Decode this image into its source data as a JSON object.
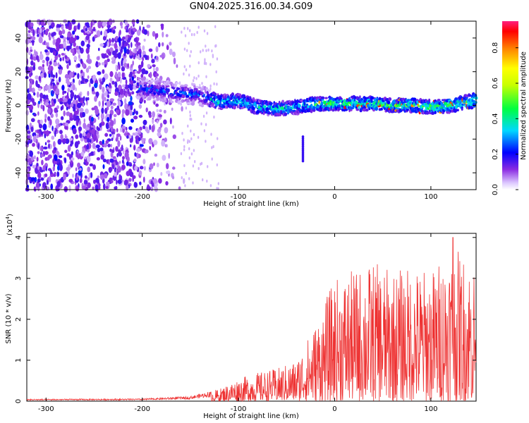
{
  "figure_title": "GN04.2025.316.00.34.G09",
  "chart_data": [
    {
      "type": "heatmap",
      "title": "GN04.2025.316.00.34.G09",
      "xlabel": "Height of straight line (km)",
      "ylabel": "Frequency (Hz)",
      "xlim": [
        -320,
        147
      ],
      "ylim": [
        -50,
        50
      ],
      "xticks": [
        "-300",
        "-200",
        "-100",
        "0",
        "100"
      ],
      "yticks": [
        "40",
        "20",
        "0",
        "-20",
        "-40"
      ],
      "colorbar": {
        "label": "Normalized spectral amplitude",
        "range": [
          0,
          0.95
        ],
        "ticks": [
          "0.0",
          "0.2",
          "0.4",
          "0.6",
          "0.8"
        ]
      },
      "features": {
        "noise_region_km": [
          -320,
          -155
        ],
        "noise_amplitude": 0.12,
        "signal_frequency_hz": [
          [
            -200,
            10
          ],
          [
            -170,
            8
          ],
          [
            -140,
            6
          ],
          [
            -120,
            2
          ],
          [
            -100,
            3
          ],
          [
            -80,
            -1
          ],
          [
            -60,
            -2
          ],
          [
            -40,
            -1
          ],
          [
            -20,
            1
          ],
          [
            0,
            1
          ],
          [
            20,
            1
          ],
          [
            40,
            1
          ],
          [
            60,
            0
          ],
          [
            80,
            0
          ],
          [
            100,
            -1
          ],
          [
            120,
            0
          ],
          [
            147,
            3
          ]
        ],
        "signal_peak_amplitude": 0.9,
        "isolated_trace": {
          "x": -33,
          "y_range": [
            -33,
            -18
          ]
        }
      }
    },
    {
      "type": "line",
      "xlabel": "Height of straight line (km)",
      "ylabel": "SNR (10 * v/v)",
      "y_multiplier": "(x10",
      "y_multiplier_exp": "4",
      "y_multiplier_close": ")",
      "xlim": [
        -320,
        147
      ],
      "ylim": [
        0,
        4.1
      ],
      "xticks": [
        "-300",
        "-200",
        "-100",
        "0",
        "100"
      ],
      "yticks": [
        "0",
        "1",
        "2",
        "3",
        "4"
      ],
      "color": "#ee3333",
      "envelope": {
        "x": [
          -320,
          -200,
          -150,
          -120,
          -100,
          -80,
          -60,
          -40,
          -20,
          0,
          20,
          40,
          60,
          80,
          100,
          120,
          147
        ],
        "y": [
          0.05,
          0.06,
          0.12,
          0.3,
          0.55,
          0.7,
          0.8,
          1.0,
          1.9,
          3.0,
          3.2,
          3.4,
          3.2,
          3.3,
          3.2,
          3.8,
          3.4
        ]
      },
      "peak": {
        "x": 123,
        "y": 4.0
      }
    }
  ]
}
